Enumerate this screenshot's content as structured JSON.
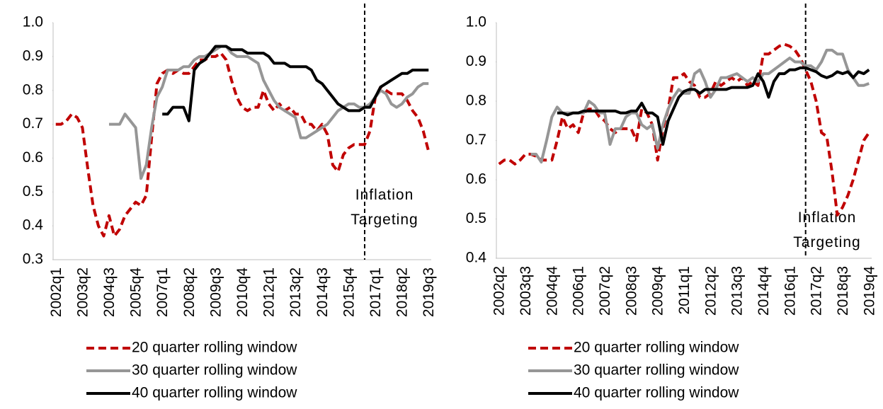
{
  "chart_data": [
    {
      "type": "line",
      "categories": [
        "2002q1",
        null,
        null,
        null,
        null,
        "2003q2",
        null,
        null,
        null,
        null,
        "2004q3",
        null,
        null,
        null,
        null,
        "2005q4",
        null,
        null,
        null,
        null,
        "2007q1",
        null,
        null,
        null,
        null,
        "2008q2",
        null,
        null,
        null,
        null,
        "2009q3",
        null,
        null,
        null,
        null,
        "2010q4",
        null,
        null,
        null,
        null,
        "2012q1",
        null,
        null,
        null,
        null,
        "2013q2",
        null,
        null,
        null,
        null,
        "2014q3",
        null,
        null,
        null,
        null,
        "2015q4",
        null,
        null,
        null,
        null,
        "2017q1",
        null,
        null,
        null,
        null,
        "2018q2",
        null,
        null,
        null,
        null,
        "2019q3"
      ],
      "series": [
        {
          "name": "20 quarter rolling window",
          "color": "#c00000",
          "dashed": true,
          "values": [
            0.7,
            0.7,
            0.71,
            0.73,
            0.72,
            0.69,
            0.57,
            0.46,
            0.4,
            0.37,
            0.43,
            0.37,
            0.39,
            0.43,
            0.45,
            0.47,
            0.46,
            0.49,
            0.66,
            0.82,
            0.85,
            0.86,
            0.85,
            0.86,
            0.85,
            0.85,
            0.87,
            0.89,
            0.89,
            0.9,
            0.9,
            0.91,
            0.89,
            0.83,
            0.78,
            0.75,
            0.74,
            0.75,
            0.75,
            0.8,
            0.76,
            0.74,
            0.76,
            0.74,
            0.75,
            0.73,
            0.73,
            0.7,
            0.7,
            0.68,
            0.7,
            0.67,
            0.58,
            0.56,
            0.61,
            0.63,
            0.64,
            0.64,
            0.64,
            0.68,
            0.78,
            0.81,
            0.8,
            0.79,
            0.79,
            0.79,
            0.77,
            0.74,
            0.72,
            0.68,
            0.62
          ]
        },
        {
          "name": "30 quarter rolling window",
          "color": "#969696",
          "dashed": false,
          "values": [
            null,
            null,
            null,
            null,
            null,
            null,
            null,
            null,
            null,
            null,
            0.7,
            0.7,
            0.7,
            0.73,
            0.71,
            0.69,
            0.54,
            0.58,
            0.69,
            0.78,
            0.81,
            0.86,
            0.86,
            0.86,
            0.87,
            0.87,
            0.89,
            0.9,
            0.9,
            0.91,
            0.92,
            0.93,
            0.93,
            0.91,
            0.9,
            0.9,
            0.9,
            0.89,
            0.88,
            0.83,
            0.8,
            0.77,
            0.75,
            0.74,
            0.73,
            0.72,
            0.66,
            0.66,
            0.67,
            0.68,
            0.69,
            0.7,
            0.72,
            0.74,
            0.75,
            0.76,
            0.76,
            0.75,
            0.75,
            0.76,
            0.78,
            0.8,
            0.79,
            0.76,
            0.75,
            0.76,
            0.78,
            0.79,
            0.81,
            0.82,
            0.82
          ]
        },
        {
          "name": "40 quarter rolling window",
          "color": "#000000",
          "dashed": false,
          "values": [
            null,
            null,
            null,
            null,
            null,
            null,
            null,
            null,
            null,
            null,
            null,
            null,
            null,
            null,
            null,
            null,
            null,
            null,
            null,
            null,
            0.73,
            0.73,
            0.75,
            0.75,
            0.75,
            0.71,
            0.86,
            0.88,
            0.89,
            0.91,
            0.93,
            0.93,
            0.93,
            0.92,
            0.92,
            0.92,
            0.91,
            0.91,
            0.91,
            0.91,
            0.9,
            0.88,
            0.88,
            0.88,
            0.87,
            0.87,
            0.87,
            0.87,
            0.86,
            0.83,
            0.82,
            0.8,
            0.78,
            0.76,
            0.75,
            0.74,
            0.74,
            0.74,
            0.75,
            0.75,
            0.78,
            0.81,
            0.82,
            0.83,
            0.84,
            0.85,
            0.85,
            0.86,
            0.86,
            0.86,
            0.86
          ]
        }
      ],
      "ylim": [
        0.3,
        1.0
      ],
      "yticks": [
        0.3,
        0.4,
        0.5,
        0.6,
        0.7,
        0.8,
        0.9,
        {
          "value": 1.0,
          "label": "1.0"
        }
      ],
      "vline_index": 58,
      "annotation": [
        "Inflation",
        "Targeting"
      ],
      "legend": "bottom"
    },
    {
      "type": "line",
      "categories": [
        "2002q2",
        null,
        null,
        null,
        null,
        "2003q3",
        null,
        null,
        null,
        null,
        "2004q4",
        null,
        null,
        null,
        null,
        "2006q1",
        null,
        null,
        null,
        null,
        "2007q2",
        null,
        null,
        null,
        null,
        "2008q3",
        null,
        null,
        null,
        null,
        "2009q4",
        null,
        null,
        null,
        null,
        "2011q1",
        null,
        null,
        null,
        null,
        "2012q2",
        null,
        null,
        null,
        null,
        "2013q3",
        null,
        null,
        null,
        null,
        "2014q4",
        null,
        null,
        null,
        null,
        "2016q1",
        null,
        null,
        null,
        null,
        "2017q2",
        null,
        null,
        null,
        null,
        "2018q3",
        null,
        null,
        null,
        null,
        "2019q4"
      ],
      "series": [
        {
          "name": "20 quarter rolling window",
          "color": "#c00000",
          "dashed": true,
          "values": [
            0.64,
            0.65,
            0.65,
            0.64,
            0.65,
            0.665,
            0.665,
            0.66,
            0.65,
            0.65,
            0.65,
            0.7,
            0.76,
            0.73,
            0.74,
            0.72,
            0.77,
            0.78,
            0.78,
            0.76,
            0.75,
            0.73,
            0.72,
            0.73,
            0.73,
            0.73,
            0.7,
            0.78,
            0.77,
            0.74,
            0.65,
            0.73,
            0.78,
            0.86,
            0.86,
            0.87,
            0.85,
            0.84,
            0.81,
            0.81,
            0.82,
            0.85,
            0.84,
            0.85,
            0.86,
            0.85,
            0.86,
            0.84,
            0.85,
            0.84,
            0.92,
            0.92,
            0.93,
            0.94,
            0.945,
            0.94,
            0.93,
            0.91,
            0.88,
            0.85,
            0.8,
            0.72,
            0.71,
            0.62,
            0.51,
            0.53,
            0.56,
            0.6,
            0.65,
            0.7,
            0.72
          ]
        },
        {
          "name": "30 quarter rolling window",
          "color": "#969696",
          "dashed": false,
          "values": [
            null,
            null,
            null,
            null,
            null,
            null,
            0.665,
            0.665,
            0.645,
            0.7,
            0.76,
            0.785,
            0.77,
            0.77,
            0.77,
            0.77,
            0.77,
            0.8,
            0.79,
            0.77,
            0.77,
            0.69,
            0.73,
            0.73,
            0.76,
            0.77,
            0.77,
            0.74,
            0.73,
            0.74,
            0.68,
            0.74,
            0.78,
            0.81,
            0.83,
            0.82,
            0.82,
            0.87,
            0.88,
            0.85,
            0.81,
            0.83,
            0.86,
            0.86,
            0.865,
            0.87,
            0.86,
            0.85,
            0.86,
            0.85,
            0.87,
            0.87,
            0.88,
            0.89,
            0.9,
            0.91,
            0.9,
            0.9,
            0.89,
            0.89,
            0.88,
            0.9,
            0.93,
            0.93,
            0.92,
            0.92,
            0.88,
            0.86,
            0.84,
            0.84,
            0.845
          ]
        },
        {
          "name": "40 quarter rolling window",
          "color": "#000000",
          "dashed": false,
          "values": [
            null,
            null,
            null,
            null,
            null,
            null,
            null,
            null,
            null,
            null,
            null,
            0.77,
            0.77,
            0.765,
            0.77,
            0.77,
            0.775,
            0.775,
            0.775,
            0.775,
            0.775,
            0.775,
            0.775,
            0.77,
            0.77,
            0.775,
            0.775,
            0.795,
            0.77,
            0.77,
            0.76,
            0.69,
            0.75,
            0.78,
            0.81,
            0.825,
            0.83,
            0.83,
            0.82,
            0.83,
            0.83,
            0.83,
            0.83,
            0.83,
            0.835,
            0.835,
            0.835,
            0.835,
            0.84,
            0.87,
            0.85,
            0.81,
            0.85,
            0.87,
            0.87,
            0.88,
            0.88,
            0.885,
            0.885,
            0.88,
            0.875,
            0.865,
            0.86,
            0.865,
            0.875,
            0.87,
            0.875,
            0.86,
            0.875,
            0.87,
            0.88
          ]
        }
      ],
      "ylim": [
        0.4,
        1.0
      ],
      "yticks": [
        0.4,
        0.5,
        0.6,
        0.7,
        0.8,
        0.9,
        {
          "value": 1.0,
          "label": "1.0"
        }
      ],
      "vline_index": 58,
      "annotation": [
        "Inflation",
        "Targeting"
      ],
      "legend": "bottom"
    }
  ]
}
